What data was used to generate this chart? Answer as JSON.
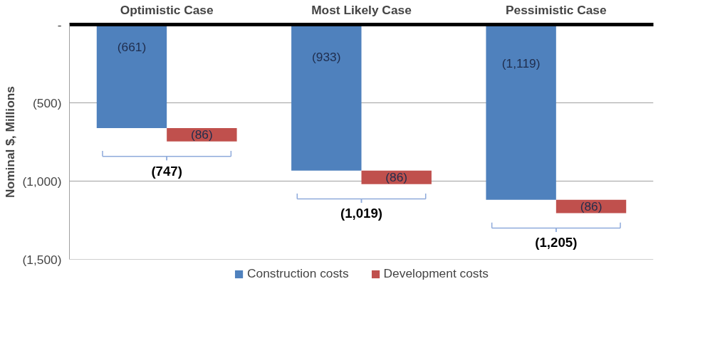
{
  "chart_data": {
    "type": "bar",
    "ylabel": "Nominal $, Millions",
    "categories": [
      "Optimistic Case",
      "Most Likely Case",
      "Pessimistic Case"
    ],
    "series": [
      {
        "name": "Construction costs",
        "color": "#4f81bd",
        "values": [
          -661,
          -933,
          -1119
        ],
        "value_labels": [
          "(661)",
          "(933)",
          "(1,119)"
        ]
      },
      {
        "name": "Development costs",
        "color": "#c0504d",
        "values": [
          -86,
          -86,
          -86
        ],
        "base": [
          -661,
          -933,
          -1119
        ],
        "value_labels": [
          "(86)",
          "(86)",
          "(86)"
        ]
      }
    ],
    "totals": [
      "(747)",
      "(1,019)",
      "(1,205)"
    ],
    "ylim": [
      -1500,
      0
    ],
    "yticks": [
      {
        "value": 0,
        "label": "-"
      },
      {
        "value": -500,
        "label": "(500)"
      },
      {
        "value": -1000,
        "label": "(1,000)"
      },
      {
        "value": -1500,
        "label": "(1,500)"
      }
    ],
    "grid": "y",
    "legend": "bottom"
  }
}
